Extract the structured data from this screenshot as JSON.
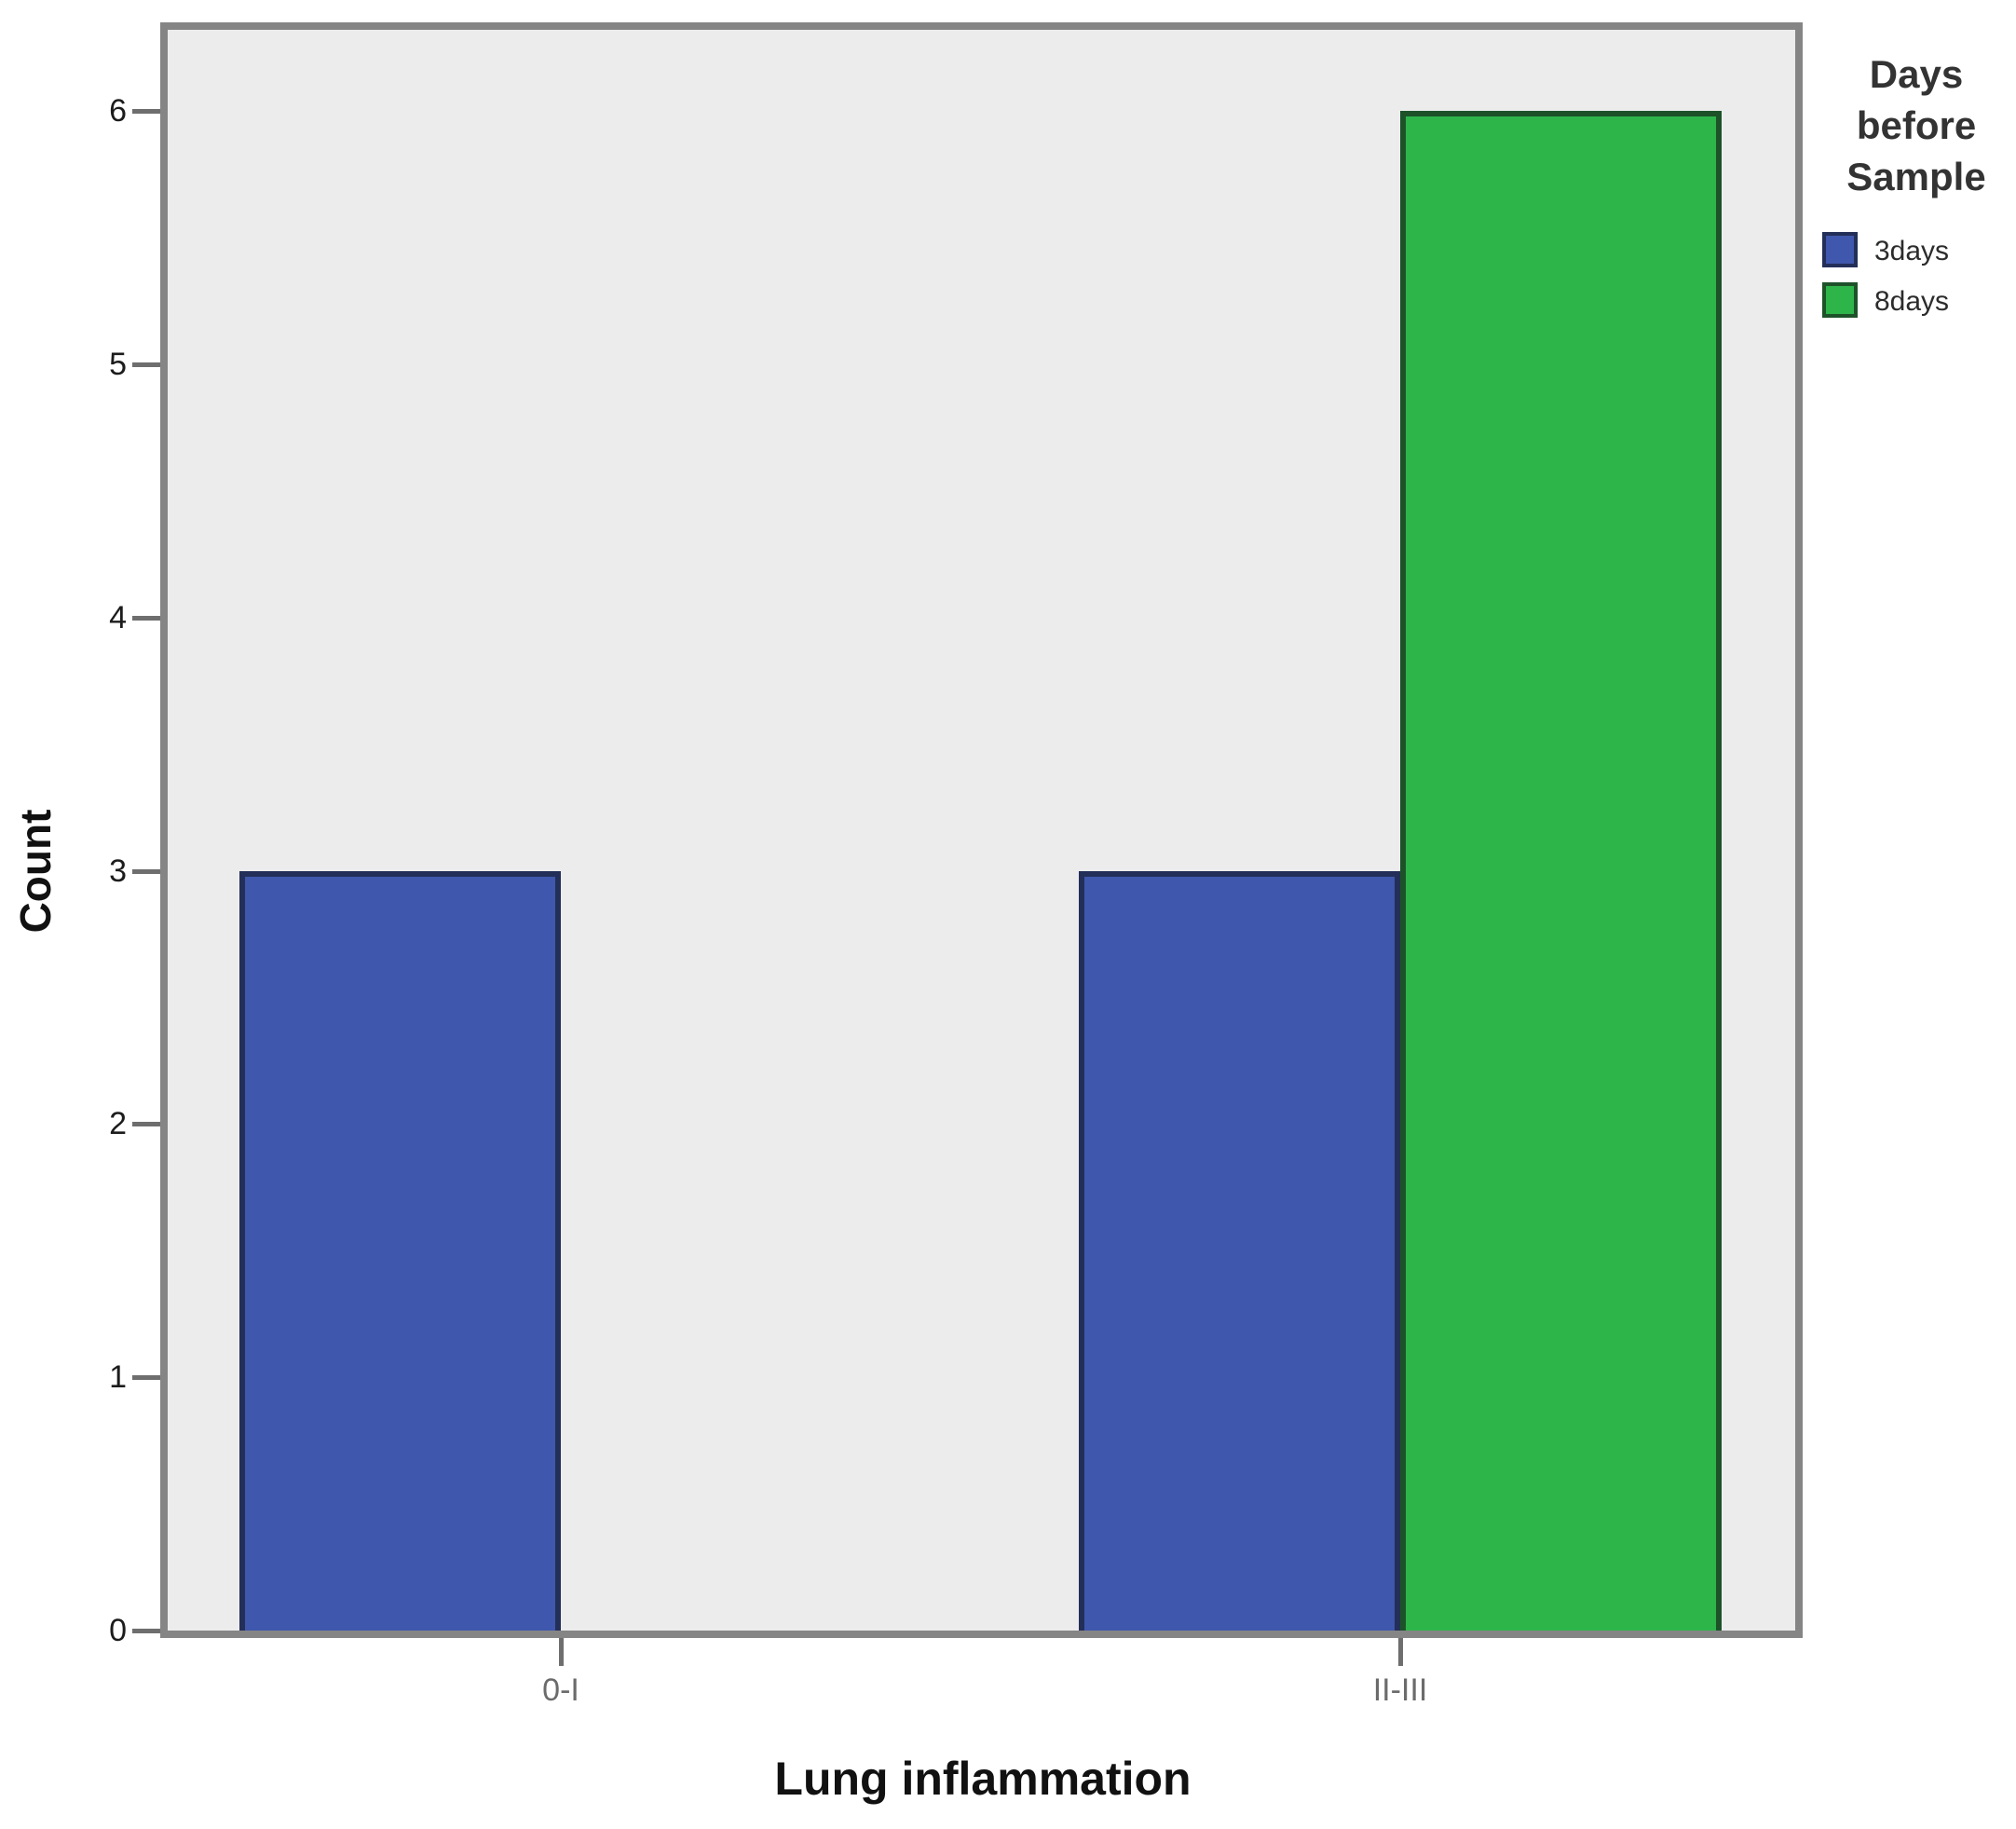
{
  "chart_data": {
    "type": "bar",
    "title": "",
    "xlabel": "Lung inflammation",
    "ylabel": "Count",
    "categories": [
      "0-I",
      "II-III"
    ],
    "series": [
      {
        "name": "3days",
        "color": "#3f57ac",
        "border_color": "#232f58",
        "values": [
          3,
          3
        ]
      },
      {
        "name": "8days",
        "color": "#2eb54a",
        "border_color": "#1d5229",
        "values": [
          0,
          6
        ]
      }
    ],
    "ylim": [
      0,
      6
    ],
    "yticks": [
      "0",
      "1",
      "2",
      "3",
      "4",
      "5",
      "6"
    ],
    "grid": false,
    "plot_background": "#ececec",
    "frame_color": "#858585",
    "legend": {
      "position": "right",
      "title": "Days before Sample",
      "title_lines": [
        "Days",
        "before",
        "Sample"
      ],
      "entries": [
        {
          "label": "3days",
          "color": "#3f57ac",
          "border_color": "#232f58"
        },
        {
          "label": "8days",
          "color": "#2eb54a",
          "border_color": "#1d5229"
        }
      ]
    }
  }
}
